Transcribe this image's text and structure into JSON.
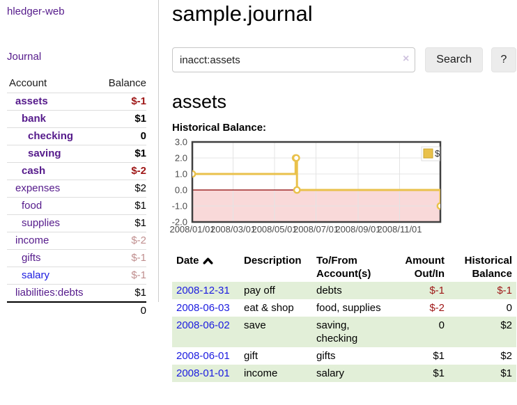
{
  "app": {
    "title": "hledger-web"
  },
  "sidebar": {
    "journal_link": "Journal",
    "accounts_table": {
      "account_header": "Account",
      "balance_header": "Balance",
      "accounts": [
        {
          "name": "assets",
          "depth": 1,
          "bold": true,
          "balance": "$-1"
        },
        {
          "name": "bank",
          "depth": 2,
          "bold": true,
          "balance": "$1"
        },
        {
          "name": "checking",
          "depth": 3,
          "bold": true,
          "balance": "0"
        },
        {
          "name": "saving",
          "depth": 3,
          "bold": true,
          "balance": "$1"
        },
        {
          "name": "cash",
          "depth": 2,
          "bold": true,
          "balance": "$-2"
        },
        {
          "name": "expenses",
          "depth": 1,
          "bold": false,
          "balance": "$2"
        },
        {
          "name": "food",
          "depth": 2,
          "bold": false,
          "balance": "$1"
        },
        {
          "name": "supplies",
          "depth": 2,
          "bold": false,
          "balance": "$1"
        },
        {
          "name": "income",
          "depth": 1,
          "bold": false,
          "balance": "$-2"
        },
        {
          "name": "gifts",
          "depth": 2,
          "bold": false,
          "balance": "$-1"
        },
        {
          "name": "salary",
          "depth": 2,
          "bold": false,
          "balance": "$-1",
          "unvisited": true
        },
        {
          "name": "liabilities:debts",
          "depth": 1,
          "bold": false,
          "balance": "$1"
        }
      ],
      "total": "0"
    }
  },
  "header": {
    "title": "sample.journal"
  },
  "search": {
    "value": "inacct:assets",
    "clear_icon": "×",
    "button_label": "Search",
    "help_label": "?"
  },
  "account_page": {
    "title": "assets",
    "chart_label": "Historical Balance:"
  },
  "chart_data": {
    "type": "line",
    "title": "Historical Balance:",
    "series": [
      {
        "name": "$",
        "color": "#e9c14b",
        "step": true,
        "points": [
          [
            "2008-01-01",
            1
          ],
          [
            "2008-06-01",
            2
          ],
          [
            "2008-06-02",
            2
          ],
          [
            "2008-06-03",
            0
          ],
          [
            "2008-12-31",
            -1
          ]
        ]
      }
    ],
    "xrange": [
      "2008-01-01",
      "2008-12-31"
    ],
    "ylim": [
      -2,
      3
    ],
    "yticks": [
      3.0,
      2.0,
      1.0,
      0.0,
      -1.0,
      -2.0
    ],
    "xticks": [
      "2008/01/01",
      "2008/03/01",
      "2008/05/01",
      "2008/07/01",
      "2008/09/01",
      "2008/11/01"
    ],
    "xlabel": "",
    "ylabel": "",
    "grid": true,
    "legend_position": "ne",
    "legend": [
      "$"
    ],
    "negative_region_color": "#f9d9d9",
    "zero_line_color": "#8b0000",
    "border_color": "#3f3f3f",
    "grid_color": "#e4e4e4",
    "tick_label_color": "#4a4a4a"
  },
  "register": {
    "columns": [
      {
        "label": "Date",
        "align": "left",
        "sort": "asc"
      },
      {
        "label": "Description",
        "align": "left"
      },
      {
        "label": "To/From Account(s)",
        "align": "left"
      },
      {
        "label": "Amount Out/In",
        "align": "right"
      },
      {
        "label": "Historical Balance",
        "align": "right"
      }
    ],
    "rows": [
      {
        "date": "2008-12-31",
        "description": "pay off",
        "accounts": "debts",
        "amount": "$-1",
        "balance": "$-1"
      },
      {
        "date": "2008-06-03",
        "description": "eat & shop",
        "accounts": "food, supplies",
        "amount": "$-2",
        "balance": "0"
      },
      {
        "date": "2008-06-02",
        "description": "save",
        "accounts": "saving, checking",
        "amount": "0",
        "balance": "$2"
      },
      {
        "date": "2008-06-01",
        "description": "gift",
        "accounts": "gifts",
        "amount": "$1",
        "balance": "$2"
      },
      {
        "date": "2008-01-01",
        "description": "income",
        "accounts": "salary",
        "amount": "$1",
        "balance": "$1"
      }
    ]
  },
  "colors": {
    "link_purple": "#551a8b",
    "link_blue": "#1b1be0",
    "negative_strong": "#9e1616",
    "negative_dim": "#c08f8f",
    "row_stripe_green": "#e2efd8",
    "chart_line_yellow": "#e9c14b"
  }
}
